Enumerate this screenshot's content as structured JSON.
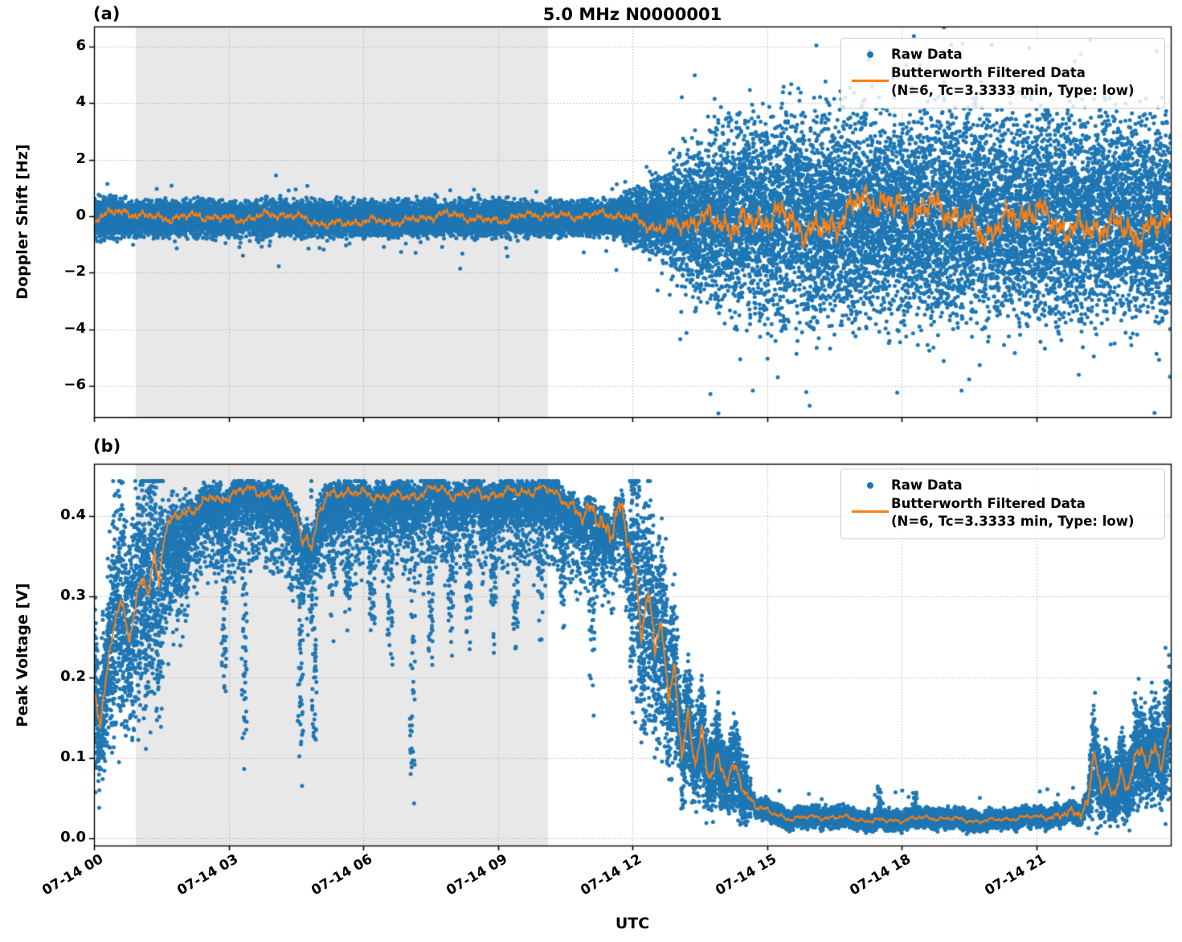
{
  "figure": {
    "title": "5.0 MHz N0000001",
    "xlabel": "UTC",
    "panel_a_label": "(a)",
    "panel_b_label": "(b)",
    "legend": {
      "raw_label": "Raw Data",
      "filtered_label": "Butterworth Filtered Data",
      "filtered_sublabel": "(N=6, Tc=3.3333 min, Type: low)"
    },
    "colors": {
      "raw": "#1f77b4",
      "filtered": "#ff7f0e",
      "shade": "#e8e8e8",
      "grid": "#b3b3b3",
      "spine": "#000000"
    }
  },
  "chart_data": [
    {
      "id": "a",
      "type": "scatter",
      "panel_label": "(a)",
      "title": "5.0 MHz N0000001",
      "ylabel": "Doppler Shift [Hz]",
      "xlabel": "",
      "ylim": [
        -7.1,
        6.7
      ],
      "yticks": [
        6,
        4,
        2,
        0,
        -2,
        -4,
        -6
      ],
      "ytick_labels": [
        "6",
        "4",
        "2",
        "0",
        "−2",
        "−4",
        "−6"
      ],
      "x_hours_range": [
        0,
        24
      ],
      "xtick_hours": [
        0,
        3,
        6,
        9,
        12,
        15,
        18,
        21
      ],
      "xtick_labels": [
        "07-14 00",
        "07-14 03",
        "07-14 06",
        "07-14 09",
        "07-14 12",
        "07-14 15",
        "07-14 18",
        "07-14 21"
      ],
      "shaded_hours": [
        0.93,
        10.12
      ],
      "grid": true,
      "legend_position": "upper right",
      "legend_entries": [
        "Raw Data",
        "Butterworth Filtered Data (N=6, Tc=3.3333 min, Type: low)"
      ],
      "series": [
        {
          "name": "Raw Data",
          "type": "scatter",
          "color": "#1f77b4",
          "marker_px": 5,
          "n_points": 24000,
          "center_hz": -0.08,
          "sigma_keypoints": [
            [
              0,
              0.34
            ],
            [
              1,
              0.28
            ],
            [
              11.6,
              0.28
            ],
            [
              12.2,
              0.5
            ],
            [
              12.8,
              0.8
            ],
            [
              13.4,
              1.2
            ],
            [
              14.2,
              1.6
            ],
            [
              15,
              1.72
            ],
            [
              24,
              1.68
            ]
          ],
          "outlier_fraction": 0.03,
          "extreme_fraction": 0.008,
          "observed_extent_hz": {
            "quiet": [
              -1.3,
              0.9
            ],
            "active": [
              -6.8,
              6.0
            ]
          }
        },
        {
          "name": "Butterworth Filtered Data (N=6, Tc=3.3333 min, Type: low)",
          "type": "line",
          "color": "#ff7f0e",
          "mean_hz": -0.08,
          "amp_keypoints": [
            [
              0,
              0.14
            ],
            [
              11.5,
              0.13
            ],
            [
              12.5,
              0.2
            ],
            [
              13.5,
              0.34
            ],
            [
              14.5,
              0.44
            ],
            [
              24,
              0.44
            ]
          ]
        }
      ]
    },
    {
      "id": "b",
      "type": "scatter",
      "panel_label": "(b)",
      "ylabel": "Peak Voltage [V]",
      "xlabel": "UTC",
      "ylim": [
        -0.009,
        0.465
      ],
      "yticks": [
        0.4,
        0.3,
        0.2,
        0.1,
        0.0
      ],
      "ytick_labels": [
        "0.4",
        "0.3",
        "0.2",
        "0.1",
        "0.0"
      ],
      "x_hours_range": [
        0,
        24
      ],
      "xtick_hours": [
        0,
        3,
        6,
        9,
        12,
        15,
        18,
        21
      ],
      "xtick_labels": [
        "07-14 00",
        "07-14 03",
        "07-14 06",
        "07-14 09",
        "07-14 12",
        "07-14 15",
        "07-14 18",
        "07-14 21"
      ],
      "shaded_hours": [
        0.93,
        10.12
      ],
      "grid": true,
      "legend_position": "upper right",
      "legend_entries": [
        "Raw Data",
        "Butterworth Filtered Data (N=6, Tc=3.3333 min, Type: low)"
      ],
      "series": [
        {
          "name": "Raw Data",
          "type": "scatter",
          "color": "#1f77b4",
          "marker_px": 5,
          "n_points": 24000,
          "saturation_v": 0.4435,
          "dip_columns": [
            [
              0.35,
              0.1
            ],
            [
              2.9,
              0.22
            ],
            [
              3.35,
              0.3
            ],
            [
              4.6,
              0.26
            ],
            [
              4.9,
              0.24
            ],
            [
              5.3,
              0.1
            ],
            [
              5.65,
              0.13
            ],
            [
              6.2,
              0.14
            ],
            [
              6.6,
              0.17
            ],
            [
              7.1,
              0.33
            ],
            [
              7.5,
              0.18
            ],
            [
              7.95,
              0.13
            ],
            [
              8.35,
              0.15
            ],
            [
              8.9,
              0.13
            ],
            [
              9.4,
              0.16
            ],
            [
              9.95,
              0.13
            ],
            [
              10.45,
              0.11
            ],
            [
              11.1,
              0.17
            ]
          ],
          "spike_columns": [
            [
              17.5,
              0.035
            ],
            [
              18.3,
              0.025
            ],
            [
              22.3,
              0.1
            ],
            [
              22.8,
              0.1
            ],
            [
              23.2,
              0.05
            ],
            [
              23.6,
              0.06
            ]
          ]
        },
        {
          "name": "Butterworth Filtered Data (N=6, Tc=3.3333 min, Type: low)",
          "type": "line",
          "color": "#ff7f0e",
          "keypoints_hours_volts": [
            [
              0,
              0.185
            ],
            [
              0.15,
              0.145
            ],
            [
              0.3,
              0.21
            ],
            [
              0.45,
              0.275
            ],
            [
              0.6,
              0.3
            ],
            [
              0.7,
              0.27
            ],
            [
              0.8,
              0.245
            ],
            [
              0.95,
              0.29
            ],
            [
              1.1,
              0.315
            ],
            [
              1.2,
              0.3
            ],
            [
              1.35,
              0.35
            ],
            [
              1.45,
              0.315
            ],
            [
              1.55,
              0.375
            ],
            [
              1.7,
              0.39
            ],
            [
              1.85,
              0.4
            ],
            [
              2.0,
              0.405
            ],
            [
              2.2,
              0.415
            ],
            [
              2.4,
              0.42
            ],
            [
              2.6,
              0.425
            ],
            [
              2.8,
              0.415
            ],
            [
              3.0,
              0.425
            ],
            [
              3.3,
              0.43
            ],
            [
              3.6,
              0.425
            ],
            [
              3.9,
              0.43
            ],
            [
              4.2,
              0.425
            ],
            [
              4.5,
              0.405
            ],
            [
              4.65,
              0.37
            ],
            [
              4.75,
              0.385
            ],
            [
              4.85,
              0.36
            ],
            [
              5.0,
              0.4
            ],
            [
              5.2,
              0.42
            ],
            [
              5.5,
              0.428
            ],
            [
              6.0,
              0.425
            ],
            [
              6.5,
              0.43
            ],
            [
              7.0,
              0.425
            ],
            [
              7.5,
              0.43
            ],
            [
              8.0,
              0.425
            ],
            [
              8.5,
              0.43
            ],
            [
              9.0,
              0.432
            ],
            [
              9.5,
              0.428
            ],
            [
              10.0,
              0.43
            ],
            [
              10.3,
              0.425
            ],
            [
              10.6,
              0.42
            ],
            [
              10.9,
              0.4
            ],
            [
              11.1,
              0.415
            ],
            [
              11.3,
              0.405
            ],
            [
              11.5,
              0.38
            ],
            [
              11.7,
              0.4
            ],
            [
              11.9,
              0.36
            ],
            [
              12.05,
              0.33
            ],
            [
              12.2,
              0.25
            ],
            [
              12.35,
              0.31
            ],
            [
              12.5,
              0.22
            ],
            [
              12.65,
              0.27
            ],
            [
              12.8,
              0.17
            ],
            [
              12.95,
              0.23
            ],
            [
              13.1,
              0.11
            ],
            [
              13.25,
              0.16
            ],
            [
              13.4,
              0.09
            ],
            [
              13.55,
              0.13
            ],
            [
              13.7,
              0.08
            ],
            [
              13.9,
              0.1
            ],
            [
              14.1,
              0.065
            ],
            [
              14.3,
              0.08
            ],
            [
              14.5,
              0.055
            ],
            [
              14.8,
              0.04
            ],
            [
              15.1,
              0.032
            ],
            [
              15.5,
              0.027
            ],
            [
              16.0,
              0.025
            ],
            [
              17.0,
              0.024
            ],
            [
              18.0,
              0.023
            ],
            [
              19.0,
              0.024
            ],
            [
              20.0,
              0.023
            ],
            [
              21.0,
              0.025
            ],
            [
              21.4,
              0.028
            ],
            [
              21.8,
              0.033
            ],
            [
              22.0,
              0.04
            ],
            [
              22.15,
              0.05
            ],
            [
              22.3,
              0.115
            ],
            [
              22.45,
              0.05
            ],
            [
              22.6,
              0.065
            ],
            [
              22.75,
              0.05
            ],
            [
              22.9,
              0.08
            ],
            [
              23.05,
              0.06
            ],
            [
              23.2,
              0.09
            ],
            [
              23.35,
              0.105
            ],
            [
              23.5,
              0.085
            ],
            [
              23.65,
              0.12
            ],
            [
              23.8,
              0.1
            ],
            [
              23.95,
              0.14
            ],
            [
              24,
              0.145
            ]
          ],
          "wiggle_amp_keypoints": [
            [
              0,
              0.012
            ],
            [
              1.5,
              0.01
            ],
            [
              2.5,
              0.008
            ],
            [
              10.5,
              0.008
            ],
            [
              11.5,
              0.02
            ],
            [
              14,
              0.012
            ],
            [
              15,
              0.004
            ],
            [
              21,
              0.003
            ],
            [
              22,
              0.01
            ],
            [
              24,
              0.012
            ]
          ]
        }
      ]
    }
  ]
}
